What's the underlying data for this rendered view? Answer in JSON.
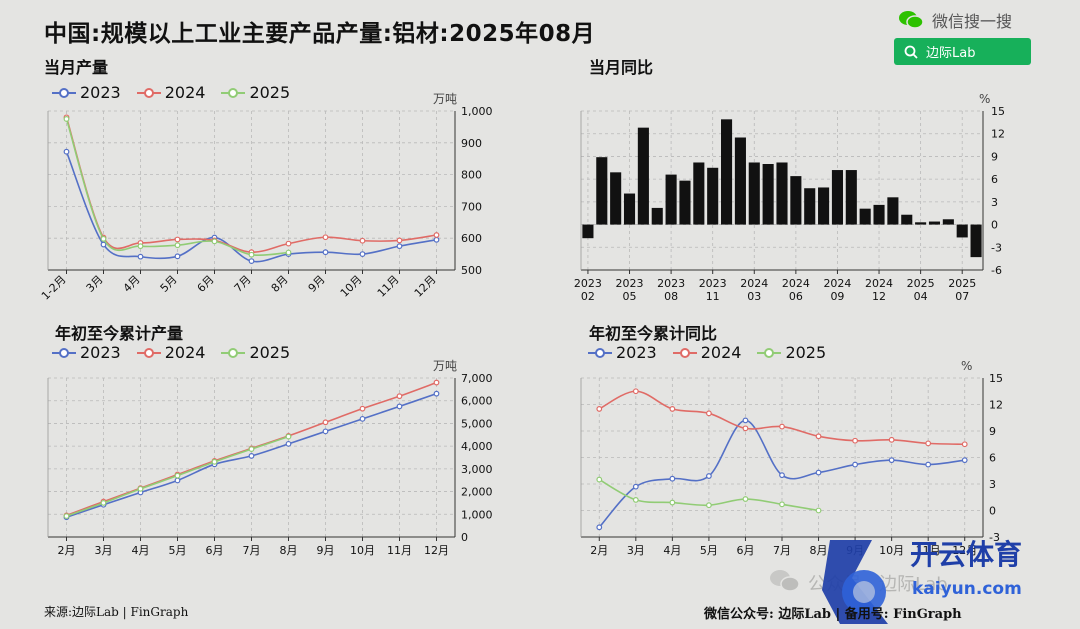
{
  "page": {
    "title": "中国:规模以上工业主要产品产量:铝材:2025年08月"
  },
  "brand": {
    "wechat_label": "微信搜一搜",
    "search_label": "边际Lab"
  },
  "colors": {
    "s2023": "#5470c6",
    "s2024": "#e06b66",
    "s2025": "#91cc75",
    "bar": "#111111",
    "grid": "#b9b9b9"
  },
  "legend": [
    "2023",
    "2024",
    "2025"
  ],
  "footer": {
    "source": "来源:边际Lab | FinGraph",
    "right": "微信公众号: 边际Lab  |  备用号: FinGraph"
  },
  "watermark": {
    "line1": "开云体育",
    "line2": "kaiyun.com",
    "faded": "公众号 · 边际Lab"
  },
  "chart_data": [
    {
      "id": "monthly",
      "type": "line",
      "title": "当月产量",
      "unit": "万吨",
      "categories": [
        "1-2月",
        "3月",
        "4月",
        "5月",
        "6月",
        "7月",
        "8月",
        "9月",
        "10月",
        "11月",
        "12月"
      ],
      "ylim": [
        500,
        1000
      ],
      "yticks": [
        500,
        600,
        700,
        800,
        900,
        1000
      ],
      "ytick_labels": [
        "500",
        "600",
        "700",
        "800",
        "900",
        "1,000"
      ],
      "series": [
        {
          "name": "2023",
          "values": [
            872,
            580,
            542,
            543,
            602,
            528,
            550,
            556,
            550,
            575,
            595
          ]
        },
        {
          "name": "2024",
          "values": [
            980,
            602,
            585,
            596,
            593,
            556,
            583,
            603,
            592,
            593,
            610
          ]
        },
        {
          "name": "2025",
          "values": [
            975,
            598,
            575,
            578,
            590,
            548,
            555,
            null,
            null,
            null,
            null
          ]
        }
      ]
    },
    {
      "id": "monthly-yoy",
      "type": "bar",
      "title": "当月同比",
      "unit": "%",
      "ylim": [
        -6,
        15
      ],
      "yticks": [
        -6,
        -3,
        0,
        3,
        6,
        9,
        12,
        15
      ],
      "tick_labels": [
        [
          "2023",
          "02"
        ],
        [
          "2023",
          "05"
        ],
        [
          "2023",
          "08"
        ],
        [
          "2023",
          "11"
        ],
        [
          "2024",
          "03"
        ],
        [
          "2024",
          "06"
        ],
        [
          "2024",
          "09"
        ],
        [
          "2024",
          "12"
        ],
        [
          "2025",
          "04"
        ],
        [
          "2025",
          "07"
        ]
      ],
      "tick_index": [
        0,
        3,
        6,
        9,
        12,
        15,
        18,
        21,
        24,
        27
      ],
      "values": [
        -1.8,
        8.9,
        6.9,
        4.1,
        12.8,
        2.2,
        6.6,
        5.8,
        8.2,
        7.5,
        13.9,
        11.5,
        8.2,
        8.0,
        8.2,
        6.4,
        4.8,
        4.9,
        7.2,
        7.2,
        2.1,
        2.6,
        3.6,
        1.3,
        0.3,
        0.4,
        0.7,
        -1.7,
        -4.3
      ]
    },
    {
      "id": "cumulative",
      "type": "line",
      "title": "年初至今累计产量",
      "unit": "万吨",
      "categories": [
        "2月",
        "3月",
        "4月",
        "5月",
        "6月",
        "7月",
        "8月",
        "9月",
        "10月",
        "11月",
        "12月"
      ],
      "ylim": [
        0,
        7000
      ],
      "yticks": [
        0,
        1000,
        2000,
        3000,
        4000,
        5000,
        6000,
        7000
      ],
      "ytick_labels": [
        "0",
        "1,000",
        "2,000",
        "3,000",
        "4,000",
        "5,000",
        "6,000",
        "7,000"
      ],
      "series": [
        {
          "name": "2023",
          "values": [
            870,
            1420,
            1960,
            2490,
            3200,
            3570,
            4100,
            4650,
            5200,
            5750,
            6310
          ]
        },
        {
          "name": "2024",
          "values": [
            950,
            1560,
            2150,
            2750,
            3350,
            3900,
            4450,
            5050,
            5650,
            6200,
            6800
          ]
        },
        {
          "name": "2025",
          "values": [
            920,
            1500,
            2120,
            2700,
            3310,
            3870,
            4420,
            null,
            null,
            null,
            null
          ]
        }
      ]
    },
    {
      "id": "cumulative-yoy",
      "type": "line",
      "title": "年初至今累计同比",
      "unit": "%",
      "categories": [
        "2月",
        "3月",
        "4月",
        "5月",
        "6月",
        "7月",
        "8月",
        "9月",
        "10月",
        "11月",
        "12月"
      ],
      "ylim": [
        -3,
        15
      ],
      "yticks": [
        -3,
        0,
        3,
        6,
        9,
        12,
        15
      ],
      "series": [
        {
          "name": "2023",
          "values": [
            -1.9,
            2.7,
            3.6,
            3.9,
            10.2,
            4.0,
            4.3,
            5.2,
            5.7,
            5.2,
            5.7
          ]
        },
        {
          "name": "2024",
          "values": [
            11.5,
            13.5,
            11.5,
            11.0,
            9.3,
            9.5,
            8.4,
            7.9,
            8.0,
            7.6,
            7.5
          ]
        },
        {
          "name": "2025",
          "values": [
            3.5,
            1.2,
            0.9,
            0.6,
            1.3,
            0.7,
            0.0,
            null,
            null,
            null,
            null
          ]
        }
      ]
    }
  ]
}
